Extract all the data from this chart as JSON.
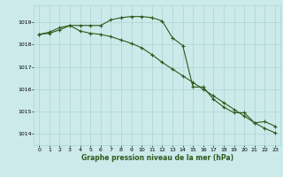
{
  "x": [
    0,
    1,
    2,
    3,
    4,
    5,
    6,
    7,
    8,
    9,
    10,
    11,
    12,
    13,
    14,
    15,
    16,
    17,
    18,
    19,
    20,
    21,
    22,
    23
  ],
  "line1": [
    1018.45,
    1018.55,
    1018.75,
    1018.85,
    1018.85,
    1018.85,
    1018.85,
    1019.1,
    1019.2,
    1019.25,
    1019.25,
    1019.2,
    1019.05,
    1018.3,
    1017.95,
    1016.1,
    1016.1,
    1015.55,
    1015.2,
    1014.95,
    1014.95,
    1014.5,
    1014.55,
    1014.35
  ],
  "line2": [
    1018.45,
    1018.5,
    1018.65,
    1018.85,
    1018.6,
    1018.5,
    1018.45,
    1018.35,
    1018.2,
    1018.05,
    1017.85,
    1017.55,
    1017.2,
    1016.9,
    1016.6,
    1016.3,
    1016.0,
    1015.7,
    1015.4,
    1015.1,
    1014.8,
    1014.5,
    1014.25,
    1014.05
  ],
  "color": "#2d5a1b",
  "bg_color": "#cceaea",
  "grid_color": "#aad4d4",
  "ylabel_ticks": [
    1014,
    1015,
    1016,
    1017,
    1018,
    1019
  ],
  "xlabel_ticks": [
    0,
    1,
    2,
    3,
    4,
    5,
    6,
    7,
    8,
    9,
    10,
    11,
    12,
    13,
    14,
    15,
    16,
    17,
    18,
    19,
    20,
    21,
    22,
    23
  ],
  "xlabel": "Graphe pression niveau de la mer (hPa)",
  "ylim": [
    1013.5,
    1019.75
  ],
  "xlim": [
    -0.5,
    23.5
  ]
}
